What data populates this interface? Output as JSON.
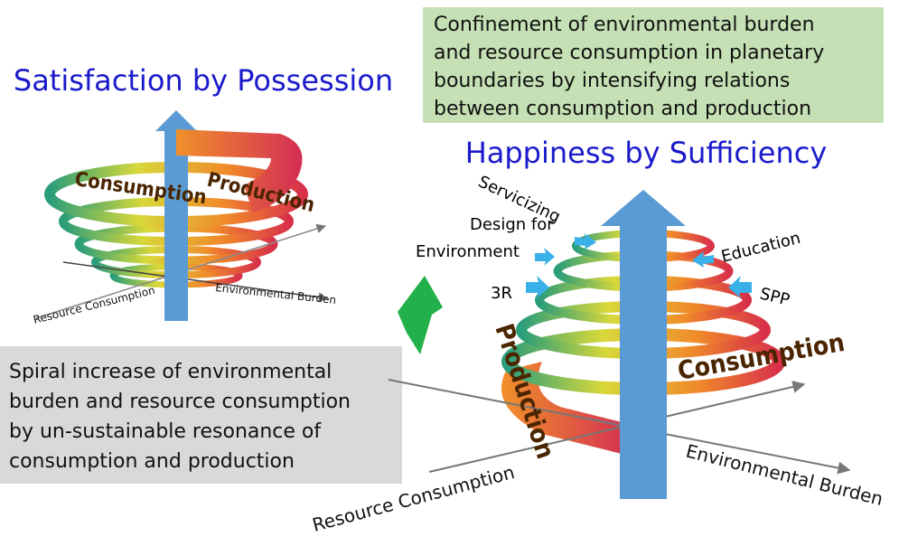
{
  "left_panel": {
    "title": "Satisfaction by Possession",
    "spiral_labels": [
      "Consumption",
      "Production"
    ],
    "axes": [
      "Resource Consumption",
      "Environmental Burden"
    ],
    "caption_lines": [
      "Spiral increase of environmental",
      "burden and resource consumption",
      "by un-sustainable resonance of",
      "consumption and production"
    ]
  },
  "right_panel": {
    "note_lines": [
      "Confinement of environmental burden",
      "and resource consumption in planetary",
      "boundaries by intensifying relations",
      "between consumption and production"
    ],
    "title": "Happiness by Sufficiency",
    "measures": {
      "servicizing": "Servicizing",
      "design_lines": [
        "Design for",
        "Environment"
      ],
      "three_r": "3R",
      "education": "Education",
      "spp": "SPP"
    },
    "spiral_labels": [
      "Production",
      "Consumption"
    ],
    "axes": [
      "Resource Consumption",
      "Environmental Burden"
    ]
  }
}
